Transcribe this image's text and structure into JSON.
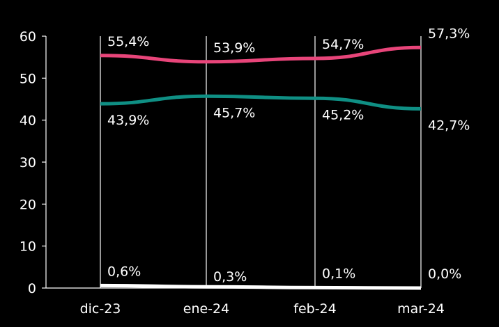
{
  "chart_data": {
    "type": "line",
    "categories": [
      "dic-23",
      "ene-24",
      "feb-24",
      "mar-24"
    ],
    "ylim": [
      0,
      60
    ],
    "yticks": [
      0,
      10,
      20,
      30,
      40,
      50,
      60
    ],
    "grid": "vertical",
    "series": [
      {
        "color": "#e8457a",
        "values": [
          55.4,
          53.9,
          54.7,
          57.3
        ],
        "labels": [
          "55,4%",
          "53,9%",
          "54,7%",
          "57,3%"
        ],
        "label_position": "above"
      },
      {
        "color": "#0f8f84",
        "values": [
          43.9,
          45.7,
          45.2,
          42.7
        ],
        "labels": [
          "43,9%",
          "45,7%",
          "45,2%",
          "42,7%"
        ],
        "label_position": "below"
      },
      {
        "color": "#ffffff",
        "values": [
          0.6,
          0.3,
          0.1,
          0.0
        ],
        "labels": [
          "0,6%",
          "0,3%",
          "0,1%",
          "0,0%"
        ],
        "label_position": "above"
      }
    ]
  }
}
